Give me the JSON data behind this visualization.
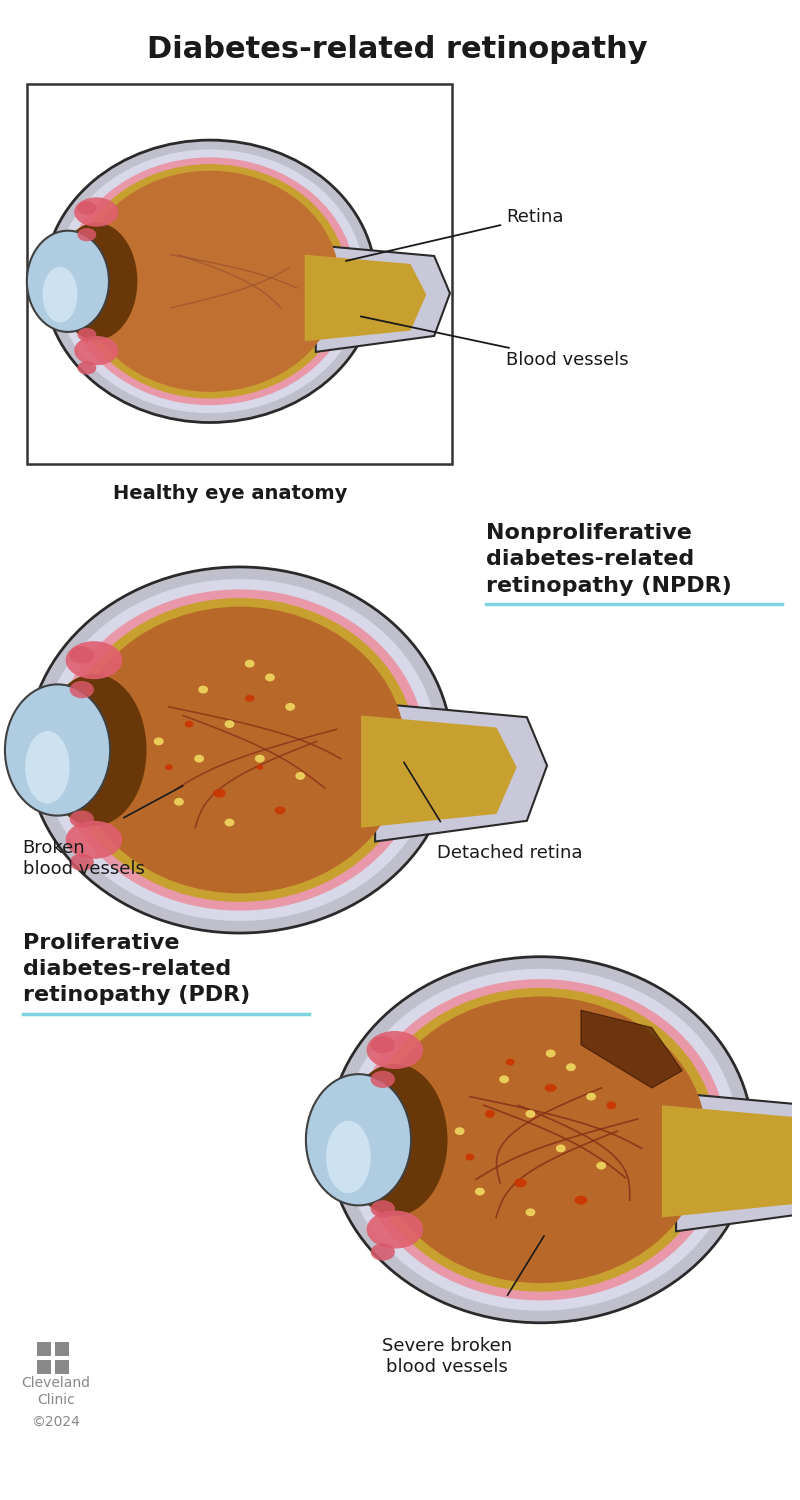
{
  "title": "Diabetes-related retinopathy",
  "title_fontsize": 22,
  "title_fontweight": "bold",
  "title_color": "#1a1a1a",
  "background_color": "#ffffff",
  "labels": {
    "healthy_caption": "Healthy eye anatomy",
    "npdr_title": "Nonproliferative\ndiabetes-related\nretinopathy (NPDR)",
    "pdr_title": "Proliferative\ndiabetes-related\nretinopathy (PDR)",
    "retina": "Retina",
    "blood_vessels": "Blood vessels",
    "broken_blood_vessels": "Broken\nblood vessels",
    "detached_retina": "Detached retina",
    "severe_broken": "Severe broken\nblood vessels",
    "cleveland_clinic": "Cleveland\nClinic",
    "copyright": "©2024"
  },
  "label_fontsize": 13,
  "caption_fontsize": 14,
  "section_fontsize": 16,
  "label_color": "#1a1a1a",
  "section_color": "#1a1a1a",
  "caption_color": "#1a1a1a",
  "teal_line_color": "#7dd3e0",
  "gray_color": "#888888",
  "sclera_outer": "#c8c8d4",
  "sclera_mid": "#dcdce8",
  "pink_choroid": "#e8a0a8",
  "yellow_layer": "#d4aa40",
  "vitreous": "#b5651d",
  "iris_brown": "#7a4010",
  "lens_blue": "#9ec8e0",
  "lens_highlight": "#c8e4f8",
  "ciliary_pink": "#e06878",
  "vessel_healthy": "#a05030",
  "vessel_broken": "#8b2000",
  "red_spot": "#cc3300",
  "yellow_spot": "#f0d060",
  "dark_region": "#6b3010",
  "detach_dark": "#5a2808"
}
